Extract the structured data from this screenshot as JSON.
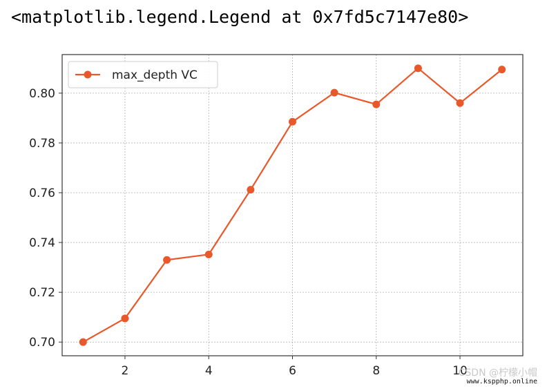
{
  "output_text": "<matplotlib.legend.Legend at 0x7fd5c7147e80>",
  "watermark": {
    "line1": "CSDN @柠檬小帽",
    "line2": "www.kspphp.online"
  },
  "chart_data": {
    "type": "line",
    "x": [
      1,
      2,
      3,
      4,
      5,
      6,
      7,
      8,
      9,
      10,
      11
    ],
    "series": [
      {
        "name": "max_depth VC",
        "values": [
          0.7,
          0.7095,
          0.733,
          0.7352,
          0.7612,
          0.7885,
          0.8002,
          0.7955,
          0.81,
          0.796,
          0.8095
        ],
        "color": "#E8582B",
        "marker": "circle"
      }
    ],
    "xticks": [
      "2",
      "4",
      "6",
      "8",
      "10"
    ],
    "yticks": [
      "0.70",
      "0.72",
      "0.74",
      "0.76",
      "0.78",
      "0.80"
    ],
    "xlim": [
      0.5,
      11.5
    ],
    "ylim": [
      0.6945,
      0.8155
    ],
    "grid": true,
    "legend_position": "upper left",
    "title": "",
    "xlabel": "",
    "ylabel": ""
  }
}
